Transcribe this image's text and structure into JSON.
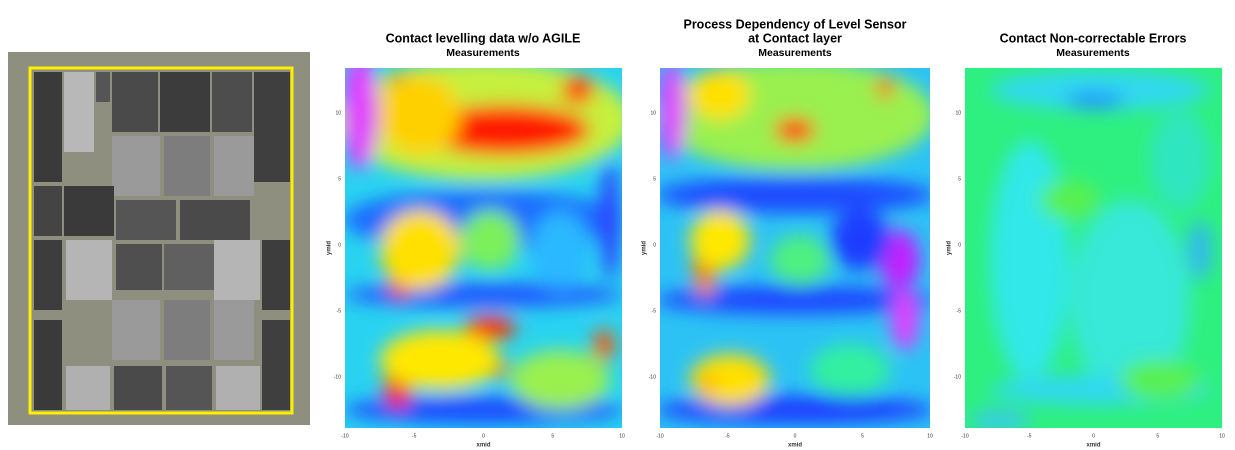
{
  "panels": [
    {
      "title": [
        "Contact levelling data w/o AGILE"
      ],
      "subtitle": "Measurements",
      "x_label": "xmid",
      "y_label": "ymid",
      "x_ticks": [
        -10,
        -5,
        0,
        5,
        10
      ],
      "y_ticks": [
        10,
        5,
        0,
        -5,
        -10
      ]
    },
    {
      "title": [
        "Process Dependency of Level Sensor",
        "at Contact layer"
      ],
      "subtitle": "Measurements",
      "x_label": "xmid",
      "y_label": "ymid",
      "x_ticks": [
        -10,
        -5,
        0,
        5,
        10
      ],
      "y_ticks": [
        10,
        5,
        0,
        -5,
        -10
      ]
    },
    {
      "title": [
        "Contact Non-correctable Errors"
      ],
      "subtitle": "Measurements",
      "x_label": "xmid",
      "y_label": "ymid",
      "x_ticks": [
        -10,
        -5,
        0,
        5,
        10
      ],
      "y_ticks": [
        10,
        5,
        0,
        -5,
        -10
      ]
    }
  ]
}
